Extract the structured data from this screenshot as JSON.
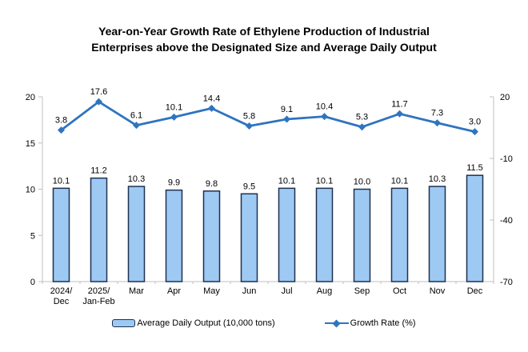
{
  "title": {
    "line1": "Year-on-Year Growth Rate of Ethylene Production of Industrial",
    "line2": "Enterprises above the Designated Size and Average Daily Output"
  },
  "legend": [
    {
      "type": "bar",
      "label": "Average Daily Output (10,000 tons)"
    },
    {
      "type": "line",
      "label": "Growth Rate (%)"
    }
  ],
  "colors": {
    "bar_fill": "#9DC9F3",
    "bar_border": "#1F3050",
    "line": "#2E74C0",
    "axis": "#BFBFBF",
    "text": "#000000"
  },
  "chart_data": {
    "type": "combo",
    "title": "Year-on-Year Growth Rate of Ethylene Production of Industrial Enterprises above the Designated Size and Average Daily Output",
    "categories": [
      "2024/\nDec",
      "2025/\nJan-Feb",
      "Mar",
      "Apr",
      "May",
      "Jun",
      "Jul",
      "Aug",
      "Sep",
      "Oct",
      "Nov",
      "Dec"
    ],
    "series": [
      {
        "name": "Average Daily Output (10,000 tons)",
        "type": "bar",
        "axis": "left",
        "values": [
          10.1,
          11.2,
          10.3,
          9.9,
          9.8,
          9.5,
          10.1,
          10.1,
          10.0,
          10.1,
          10.3,
          11.5
        ]
      },
      {
        "name": "Growth Rate (%)",
        "type": "line",
        "axis": "right",
        "values": [
          3.8,
          17.6,
          6.1,
          10.1,
          14.4,
          5.8,
          9.1,
          10.4,
          5.3,
          11.7,
          7.3,
          3.0
        ]
      }
    ],
    "left_axis": {
      "range": [
        0,
        20
      ],
      "ticks": [
        0,
        5,
        10,
        15,
        20
      ]
    },
    "right_axis": {
      "range": [
        -70,
        20
      ],
      "ticks": [
        -70,
        -40,
        -10,
        20
      ]
    },
    "grid": false,
    "legend_position": "bottom",
    "value_label_decimals": 1
  }
}
